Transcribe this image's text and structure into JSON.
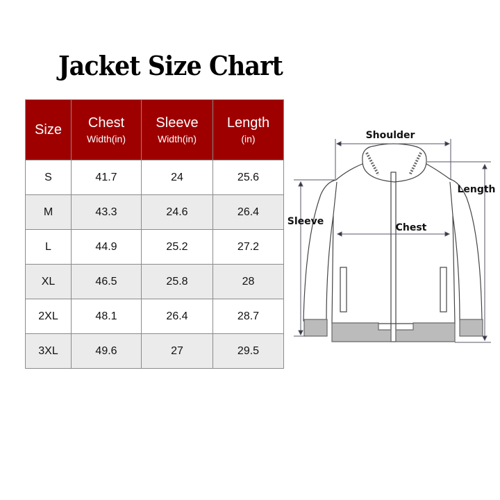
{
  "title": "Jacket Size Chart",
  "table": {
    "headers": [
      {
        "main": "Size",
        "sub": ""
      },
      {
        "main": "Chest",
        "sub": "Width(in)"
      },
      {
        "main": "Sleeve",
        "sub": "Width(in)"
      },
      {
        "main": "Length",
        "sub": "(in)"
      }
    ],
    "rows": [
      [
        "S",
        "41.7",
        "24",
        "25.6"
      ],
      [
        "M",
        "43.3",
        "24.6",
        "26.4"
      ],
      [
        "L",
        "44.9",
        "25.2",
        "27.2"
      ],
      [
        "XL",
        "46.5",
        "25.8",
        "28"
      ],
      [
        "2XL",
        "48.1",
        "26.4",
        "28.7"
      ],
      [
        "3XL",
        "49.6",
        "27",
        "29.5"
      ]
    ],
    "header_color": "#9e0000"
  },
  "diagram": {
    "shoulder": "Shoulder",
    "sleeve": "Sleeve",
    "chest": "Chest",
    "length": "Length"
  }
}
